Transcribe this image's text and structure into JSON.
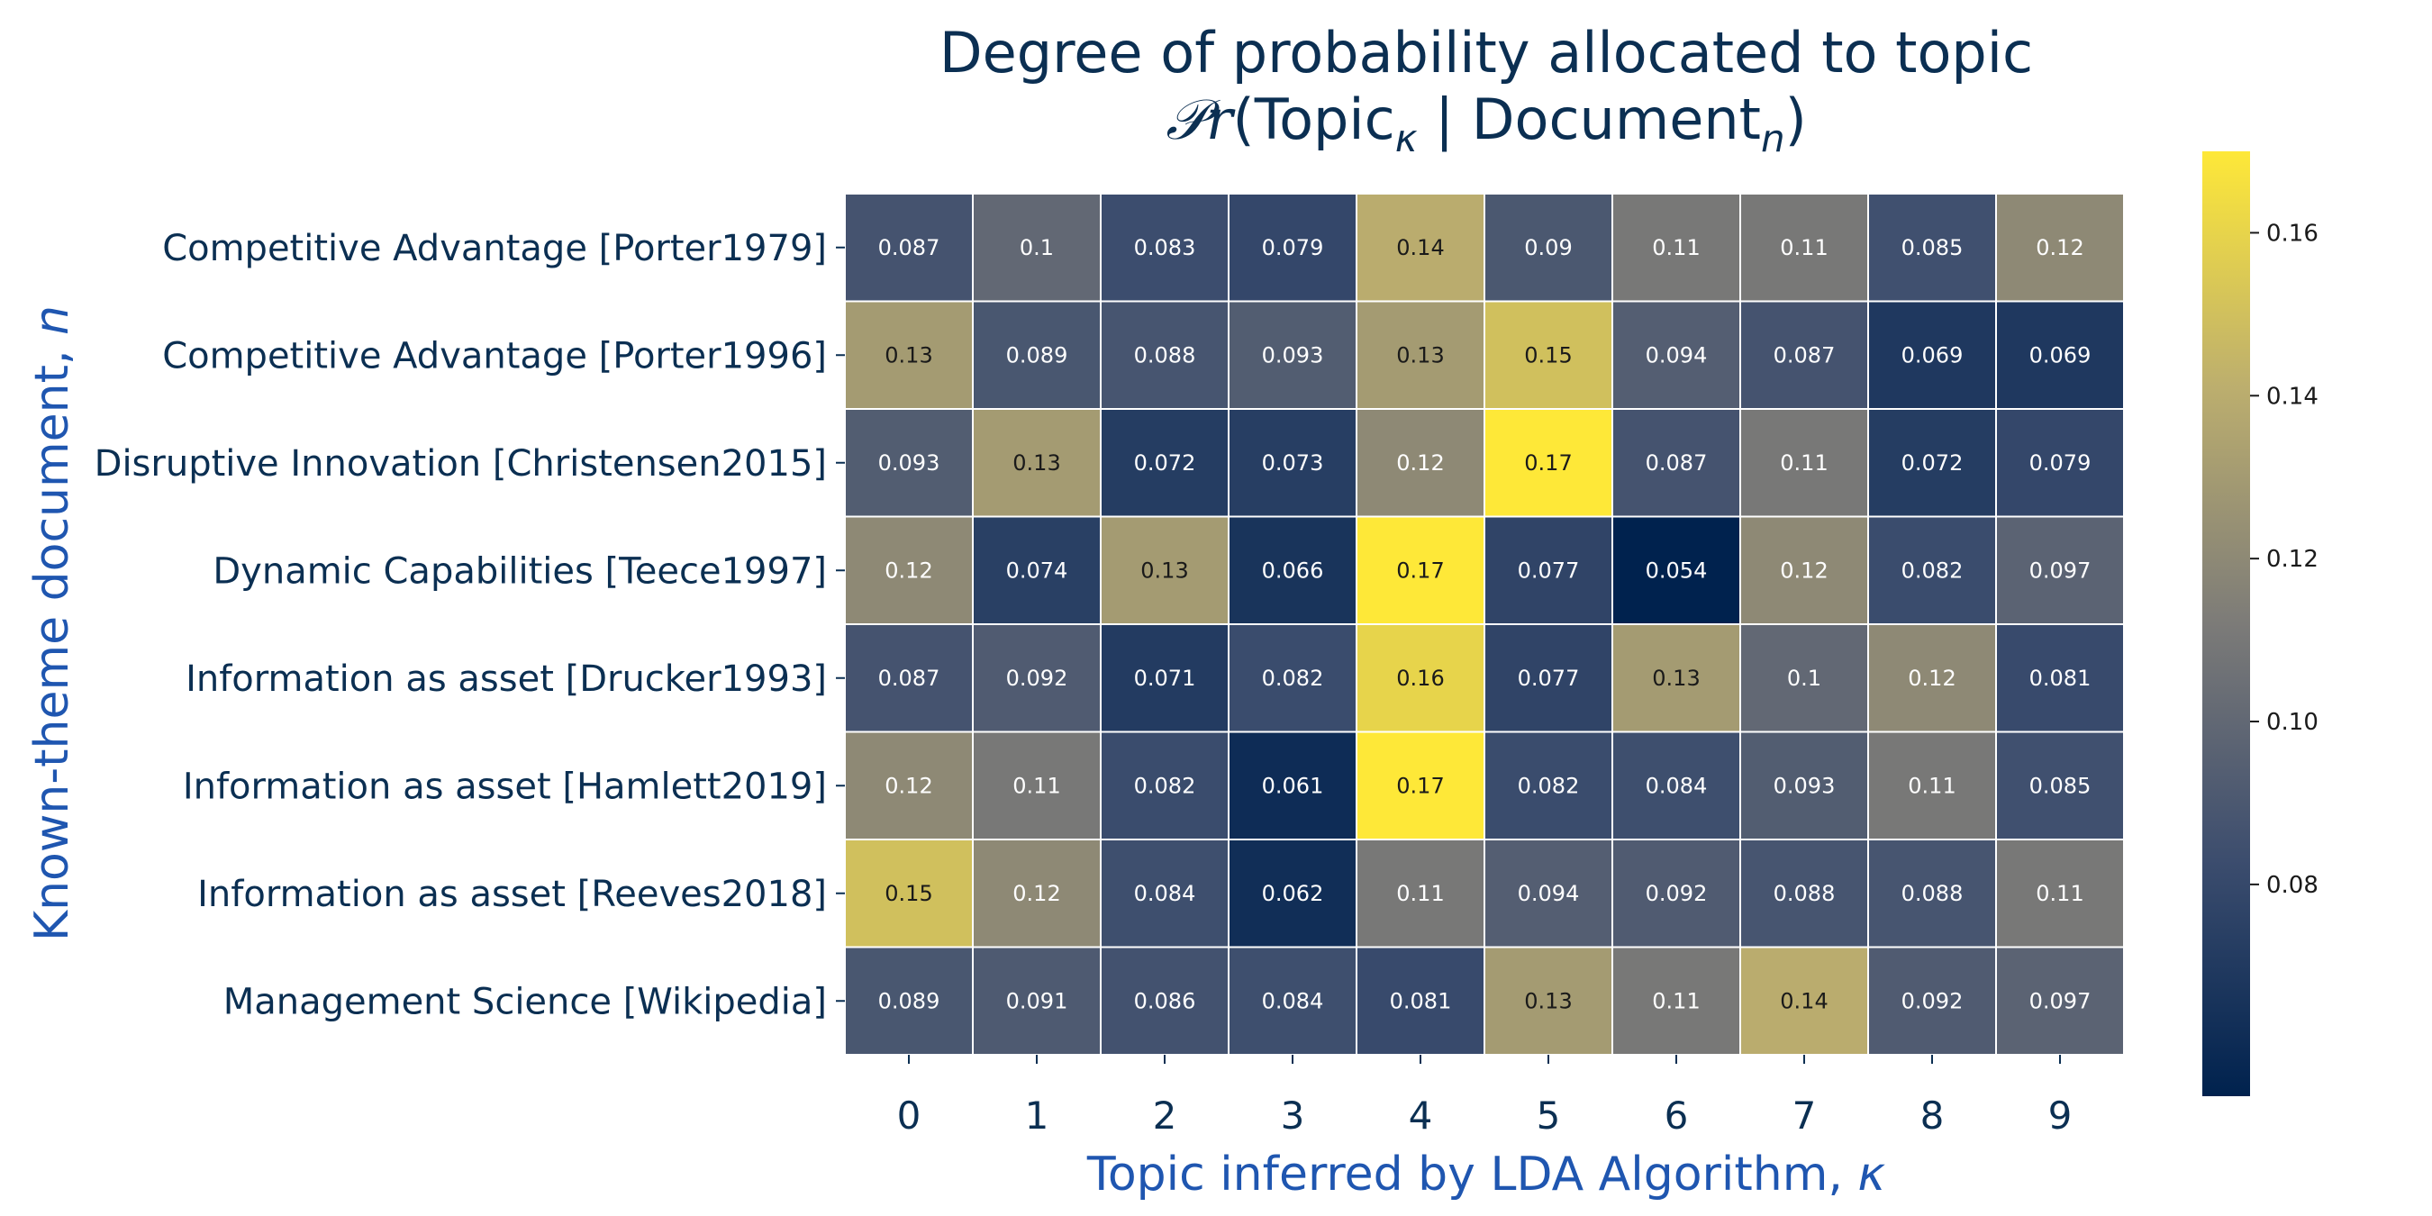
{
  "chart_data": {
    "type": "heatmap",
    "title": "Degree of probability allocated to topic",
    "title_formula": {
      "prefix": "𝒫r",
      "open": "(",
      "topic_word": "Topic",
      "topic_sub": "κ",
      "separator": " | ",
      "doc_word": "Document",
      "doc_sub": "n",
      "close": ")"
    },
    "xlabel": {
      "text": "Topic inferred by LDA Algorithm, ",
      "symbol": "κ"
    },
    "ylabel": {
      "text": "Known-theme document, ",
      "symbol": "n"
    },
    "x_categories": [
      "0",
      "1",
      "2",
      "3",
      "4",
      "5",
      "6",
      "7",
      "8",
      "9"
    ],
    "y_categories": [
      "Competitive Advantage [Porter1979]",
      "Competitive Advantage [Porter1996]",
      "Disruptive Innovation [Christensen2015]",
      "Dynamic Capabilities [Teece1997]",
      "Information as asset [Drucker1993]",
      "Information as asset [Hamlett2019]",
      "Information as asset [Reeves2018]",
      "Management Science [Wikipedia]"
    ],
    "values": [
      [
        0.087,
        0.1,
        0.083,
        0.079,
        0.14,
        0.09,
        0.11,
        0.11,
        0.085,
        0.12
      ],
      [
        0.13,
        0.089,
        0.088,
        0.093,
        0.13,
        0.15,
        0.094,
        0.087,
        0.069,
        0.069
      ],
      [
        0.093,
        0.13,
        0.072,
        0.073,
        0.12,
        0.17,
        0.087,
        0.11,
        0.072,
        0.079
      ],
      [
        0.12,
        0.074,
        0.13,
        0.066,
        0.17,
        0.077,
        0.054,
        0.12,
        0.082,
        0.097
      ],
      [
        0.087,
        0.092,
        0.071,
        0.082,
        0.16,
        0.077,
        0.13,
        0.1,
        0.12,
        0.081
      ],
      [
        0.12,
        0.11,
        0.082,
        0.061,
        0.17,
        0.082,
        0.084,
        0.093,
        0.11,
        0.085
      ],
      [
        0.15,
        0.12,
        0.084,
        0.062,
        0.11,
        0.094,
        0.092,
        0.088,
        0.088,
        0.11
      ],
      [
        0.089,
        0.091,
        0.086,
        0.084,
        0.081,
        0.13,
        0.11,
        0.14,
        0.092,
        0.097
      ]
    ],
    "colormap": "cividis",
    "colorbar": {
      "range": [
        0.054,
        0.17
      ],
      "ticks": [
        0.08,
        0.1,
        0.12,
        0.14,
        0.16
      ],
      "tick_labels": [
        "0.08",
        "0.10",
        "0.12",
        "0.14",
        "0.16"
      ]
    },
    "colors": {
      "cmap_low": "#00224e",
      "cmap_mid_low": "#3c4d6e",
      "cmap_mid": "#7c7b78",
      "cmap_mid_high": "#bcae6e",
      "cmap_high": "#fee838",
      "cell_border": "#ffffff",
      "title_text": "#0b2f52",
      "axis_label_text": "#1f56b0"
    },
    "grid": false,
    "legend": "colorbar-right"
  }
}
